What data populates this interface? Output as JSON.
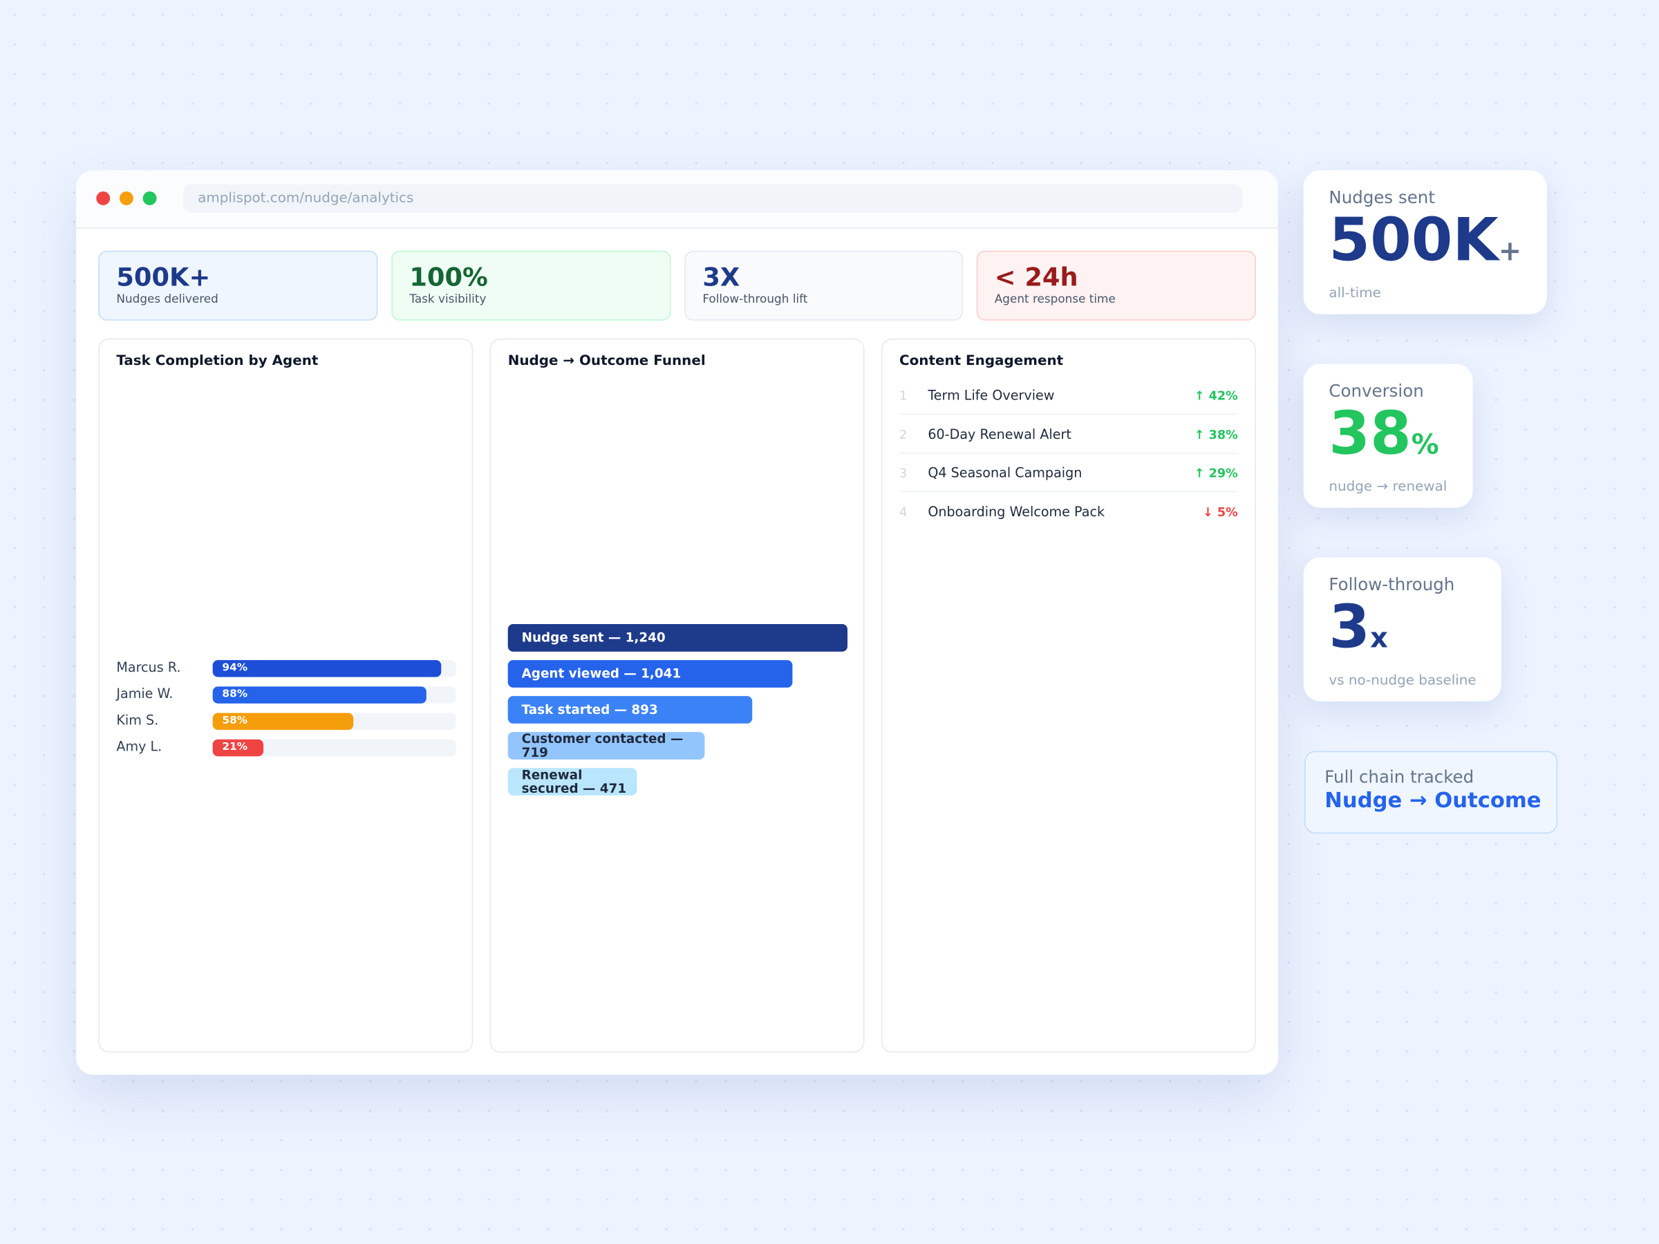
{
  "window": {
    "url": "amplispot.com/nudge/analytics"
  },
  "kpis": [
    {
      "value": "500K+",
      "label": "Nudges delivered",
      "color": "#1e3a8a",
      "bg": "#eff6ff",
      "border": "#bfdbfe"
    },
    {
      "value": "100%",
      "label": "Task visibility",
      "color": "#166534",
      "bg": "#f0fdf4",
      "border": "#bbf7d0"
    },
    {
      "value": "3X",
      "label": "Follow-through lift",
      "color": "#1e3a8a",
      "bg": "#f8fafc",
      "border": "#e2e8f0"
    },
    {
      "value": "< 24h",
      "label": "Agent response time",
      "color": "#991b1b",
      "bg": "#fef2f2",
      "border": "#fecaca"
    }
  ],
  "task_completion": {
    "title": "Task Completion by Agent",
    "max": 100,
    "agents": [
      {
        "name": "Marcus R.",
        "value": 94,
        "value_label": "94%",
        "color": "#1d4ed8"
      },
      {
        "name": "Jamie W.",
        "value": 88,
        "value_label": "88%",
        "color": "#2563eb"
      },
      {
        "name": "Kim S.",
        "value": 58,
        "value_label": "58%",
        "color": "#f59e0b"
      },
      {
        "name": "Amy L.",
        "value": 21,
        "value_label": "21%",
        "color": "#ef4444"
      }
    ]
  },
  "funnel": {
    "title": "Nudge → Outcome Funnel",
    "stages": [
      {
        "label": "Nudge sent — 1,240",
        "value": 1240,
        "color": "#1e3a8a",
        "text_color": "#ffffff"
      },
      {
        "label": "Agent viewed — 1,041",
        "value": 1041,
        "color": "#2563eb",
        "text_color": "#ffffff"
      },
      {
        "label": "Task started — 893",
        "value": 893,
        "color": "#3b82f6",
        "text_color": "#ffffff"
      },
      {
        "label": "Customer contacted — 719",
        "value": 719,
        "color": "#93c5fd",
        "text_color": "#1e293b"
      },
      {
        "label": "Renewal secured — 471",
        "value": 471,
        "color": "#bae6fd",
        "text_color": "#1e293b"
      }
    ]
  },
  "content_engagement": {
    "title": "Content Engagement",
    "items": [
      {
        "rank": "1",
        "name": "Term Life Overview",
        "change": "↑ 42%",
        "color": "#22c55e"
      },
      {
        "rank": "2",
        "name": "60-Day Renewal Alert",
        "change": "↑ 38%",
        "color": "#22c55e"
      },
      {
        "rank": "3",
        "name": "Q4 Seasonal Campaign",
        "change": "↑ 29%",
        "color": "#22c55e"
      },
      {
        "rank": "4",
        "name": "Onboarding Welcome Pack",
        "change": "↓ 5%",
        "color": "#ef4444"
      }
    ]
  },
  "side_cards": [
    {
      "label": "Nudges sent",
      "value": "500K",
      "suffix": "+",
      "sub": "all-time",
      "color": "#1e3a8a",
      "suffix_color": "#64748b"
    },
    {
      "label": "Conversion",
      "value": "38",
      "suffix": "%",
      "sub": "nudge → renewal",
      "color": "#22c55e",
      "suffix_color": "#22c55e"
    },
    {
      "label": "Follow-through",
      "value": "3",
      "suffix": "x",
      "sub": "vs no-nudge baseline",
      "color": "#1e3a8a",
      "suffix_color": "#1e3a8a"
    }
  ],
  "chain_card": {
    "label": "Full chain tracked",
    "value": "Nudge → Outcome"
  }
}
